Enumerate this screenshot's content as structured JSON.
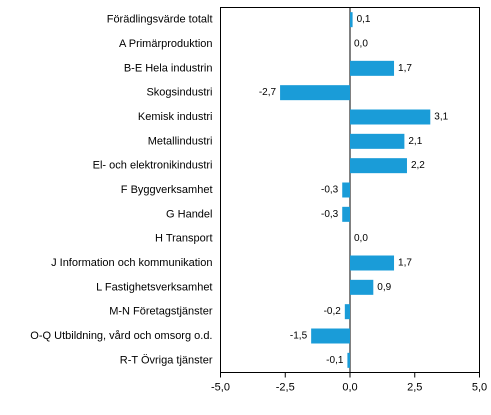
{
  "chart_data": {
    "type": "bar",
    "orientation": "horizontal",
    "categories": [
      "Förädlingsvärde totalt",
      "A Primärproduktion",
      "B-E Hela industrin",
      "Skogsindustri",
      "Kemisk industri",
      "Metallindustri",
      "El- och elektronikindustri",
      "F Byggverksamhet",
      "G Handel",
      "H Transport",
      "J Information och kommunikation",
      "L Fastighetsverksamhet",
      "M-N Företagstjänster",
      "O-Q Utbildning, vård och omsorg o.d.",
      "R-T Övriga tjänster"
    ],
    "values": [
      0.1,
      0.0,
      1.7,
      -2.7,
      3.1,
      2.1,
      2.2,
      -0.3,
      -0.3,
      0.0,
      1.7,
      0.9,
      -0.2,
      -1.5,
      -0.1
    ],
    "value_labels": [
      "0,1",
      "0,0",
      "1,7",
      "-2,7",
      "3,1",
      "2,1",
      "2,2",
      "-0,3",
      "-0,3",
      "0,0",
      "1,7",
      "0,9",
      "-0,2",
      "-1,5",
      "-0,1"
    ],
    "xlim": [
      -5.0,
      5.0
    ],
    "xticks": [
      -5.0,
      -2.5,
      0.0,
      2.5,
      5.0
    ],
    "xtick_labels": [
      "-5,0",
      "-2,5",
      "0,0",
      "2,5",
      "5,0"
    ],
    "bar_color": "#1a9cd8",
    "grid": false,
    "legend": "none"
  }
}
